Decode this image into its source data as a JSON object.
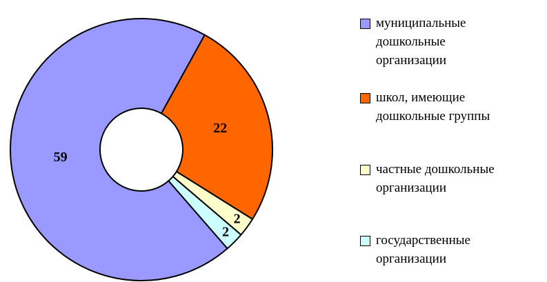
{
  "chart_data": {
    "type": "donut",
    "categories": [
      "муниципальные дошкольные организации",
      "школ, имеющие дошкольные группы",
      "частные дошкольные организации",
      "государственные организации"
    ],
    "values": [
      59,
      22,
      2,
      2
    ],
    "colors": [
      "#9999ff",
      "#ff6600",
      "#ffffcc",
      "#ccffff"
    ],
    "legend": "right"
  }
}
